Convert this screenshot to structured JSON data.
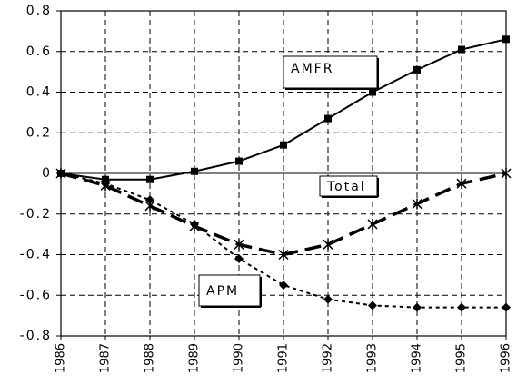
{
  "chart_data": {
    "type": "line",
    "categories": [
      "1986",
      "1987",
      "1988",
      "1989",
      "1990",
      "1991",
      "1992",
      "1993",
      "1994",
      "1995",
      "1996"
    ],
    "series": [
      {
        "name": "AMFR",
        "color": "#000000",
        "marker": "square",
        "dash": "solid",
        "values": [
          0,
          -0.03,
          -0.03,
          0.01,
          0.06,
          0.14,
          0.27,
          0.4,
          0.51,
          0.61,
          0.66
        ]
      },
      {
        "name": "Total",
        "color": "#000000",
        "marker": "x",
        "dash": "long",
        "values": [
          0,
          -0.06,
          -0.16,
          -0.26,
          -0.35,
          -0.4,
          -0.35,
          -0.25,
          -0.15,
          -0.05,
          0
        ]
      },
      {
        "name": "APM",
        "color": "#000000",
        "marker": "diamond",
        "dash": "dotted",
        "values": [
          0,
          -0.05,
          -0.13,
          -0.25,
          -0.42,
          -0.55,
          -0.62,
          -0.65,
          -0.66,
          -0.66,
          -0.66
        ]
      }
    ],
    "ylim": [
      -0.8,
      0.8
    ],
    "yticks": [
      -0.8,
      -0.6,
      -0.4,
      -0.2,
      0,
      0.2,
      0.4,
      0.6,
      0.8
    ],
    "grid": true
  }
}
